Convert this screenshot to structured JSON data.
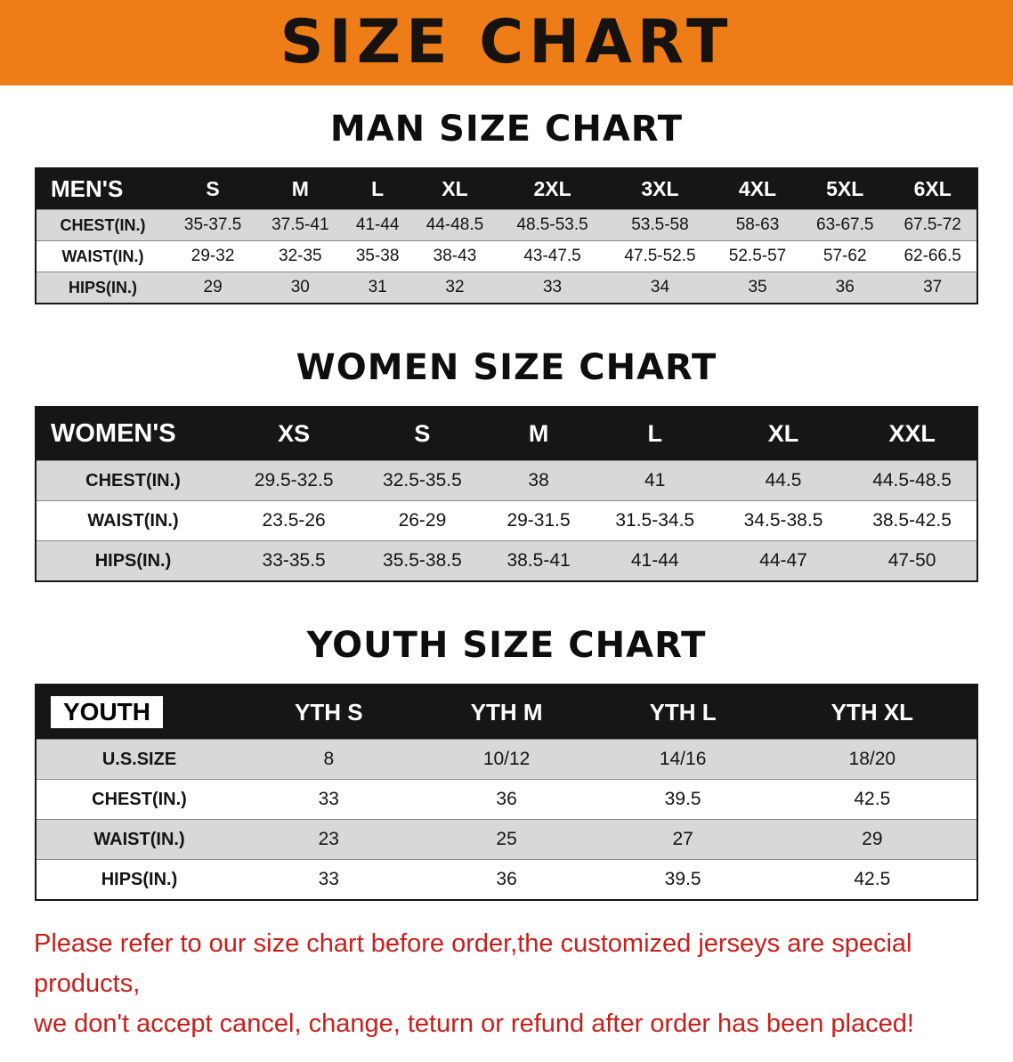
{
  "banner": {
    "title": "SIZE CHART",
    "background_color": "#ef7d17"
  },
  "sections": [
    {
      "id": "men",
      "heading": "MAN SIZE CHART",
      "table": {
        "header_label": "MEN'S",
        "header_inverted": false,
        "columns": [
          "S",
          "M",
          "L",
          "XL",
          "2XL",
          "3XL",
          "4XL",
          "5XL",
          "6XL"
        ],
        "rows": [
          {
            "label": "CHEST(IN.)",
            "values": [
              "35-37.5",
              "37.5-41",
              "41-44",
              "44-48.5",
              "48.5-53.5",
              "53.5-58",
              "58-63",
              "63-67.5",
              "67.5-72"
            ]
          },
          {
            "label": "WAIST(IN.)",
            "values": [
              "29-32",
              "32-35",
              "35-38",
              "38-43",
              "43-47.5",
              "47.5-52.5",
              "52.5-57",
              "57-62",
              "62-66.5"
            ]
          },
          {
            "label": "HIPS(IN.)",
            "values": [
              "29",
              "30",
              "31",
              "32",
              "33",
              "34",
              "35",
              "36",
              "37"
            ]
          }
        ]
      }
    },
    {
      "id": "women",
      "heading": "WOMEN SIZE CHART",
      "table": {
        "header_label": "WOMEN'S",
        "header_inverted": false,
        "columns": [
          "XS",
          "S",
          "M",
          "L",
          "XL",
          "XXL"
        ],
        "rows": [
          {
            "label": "CHEST(IN.)",
            "values": [
              "29.5-32.5",
              "32.5-35.5",
              "38",
              "41",
              "44.5",
              "44.5-48.5"
            ]
          },
          {
            "label": "WAIST(IN.)",
            "values": [
              "23.5-26",
              "26-29",
              "29-31.5",
              "31.5-34.5",
              "34.5-38.5",
              "38.5-42.5"
            ]
          },
          {
            "label": "HIPS(IN.)",
            "values": [
              "33-35.5",
              "35.5-38.5",
              "38.5-41",
              "41-44",
              "44-47",
              "47-50"
            ]
          }
        ]
      }
    },
    {
      "id": "youth",
      "heading": "YOUTH SIZE CHART",
      "table": {
        "header_label": "YOUTH",
        "header_inverted": true,
        "columns": [
          "YTH S",
          "YTH M",
          "YTH L",
          "YTH XL"
        ],
        "rows": [
          {
            "label": "U.S.SIZE",
            "values": [
              "8",
              "10/12",
              "14/16",
              "18/20"
            ]
          },
          {
            "label": "CHEST(IN.)",
            "values": [
              "33",
              "36",
              "39.5",
              "42.5"
            ]
          },
          {
            "label": "WAIST(IN.)",
            "values": [
              "23",
              "25",
              "27",
              "29"
            ]
          },
          {
            "label": "HIPS(IN.)",
            "values": [
              "33",
              "36",
              "39.5",
              "42.5"
            ]
          }
        ]
      }
    }
  ],
  "footer": {
    "line1": "Please refer to our size chart before order,the customized jerseys are special products,",
    "line2": "we don't accept cancel, change, teturn or refund after order has been placed!",
    "text_color": "#c5201c"
  }
}
